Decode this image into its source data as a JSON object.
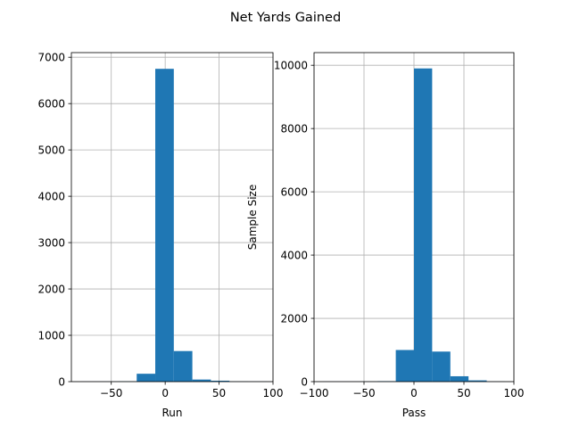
{
  "figure": {
    "title": "Net Yards Gained"
  },
  "colors": {
    "bar": "#1f77b4",
    "grid": "#b0b0b0",
    "axis": "#000000"
  },
  "chart_data": [
    {
      "type": "bar",
      "subtype": "histogram",
      "xlabel": "Run",
      "ylabel": "",
      "xlim": [
        -87,
        100
      ],
      "ylim": [
        0,
        7100
      ],
      "xticks": [
        -50,
        0,
        50,
        100
      ],
      "xtick_labels": [
        "−50",
        "0",
        "50",
        "100"
      ],
      "yticks": [
        0,
        1000,
        2000,
        3000,
        4000,
        5000,
        6000,
        7000
      ],
      "ytick_labels": [
        "0",
        "1000",
        "2000",
        "3000",
        "4000",
        "5000",
        "6000",
        "7000"
      ],
      "grid": true,
      "bin_edges": [
        -78,
        -60.8,
        -43.6,
        -26.4,
        -9.2,
        8,
        25.2,
        42.4,
        59.6,
        76.8,
        94
      ],
      "values": [
        1,
        2,
        5,
        170,
        6750,
        660,
        45,
        20,
        4,
        2
      ]
    },
    {
      "type": "bar",
      "subtype": "histogram",
      "xlabel": "Pass",
      "ylabel": "Sample Size",
      "xlim": [
        -100,
        100
      ],
      "ylim": [
        0,
        10400
      ],
      "xticks": [
        -100,
        -50,
        0,
        50,
        100
      ],
      "xtick_labels": [
        "−100",
        "−50",
        "0",
        "50",
        "100"
      ],
      "yticks": [
        0,
        2000,
        4000,
        6000,
        8000,
        10000
      ],
      "ytick_labels": [
        "0",
        "2000",
        "4000",
        "6000",
        "8000",
        "10000"
      ],
      "grid": true,
      "bin_edges": [
        -91,
        -72.8,
        -54.6,
        -36.4,
        -18.2,
        0,
        18.2,
        36.4,
        54.6,
        72.8,
        91
      ],
      "values": [
        1,
        2,
        5,
        15,
        1000,
        9900,
        950,
        170,
        40,
        5
      ]
    }
  ]
}
